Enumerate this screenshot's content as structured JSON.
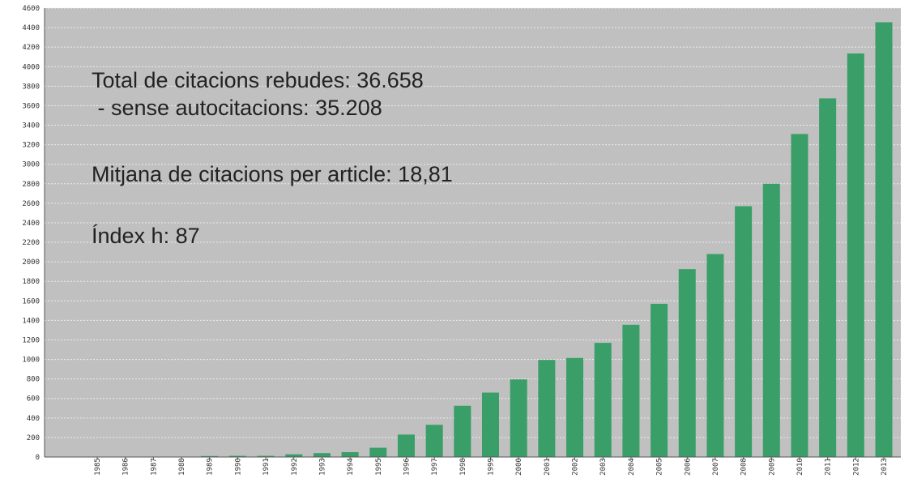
{
  "chart_data": {
    "type": "bar",
    "categories": [
      "1985",
      "1986",
      "1987",
      "1988",
      "1989",
      "1990",
      "1991",
      "1992",
      "1993",
      "1994",
      "1995",
      "1996",
      "1997",
      "1998",
      "1999",
      "2000",
      "2001",
      "2002",
      "2003",
      "2004",
      "2005",
      "2006",
      "2007",
      "2008",
      "2009",
      "2010",
      "2011",
      "2012",
      "2013"
    ],
    "values": [
      0,
      0,
      0,
      0,
      10,
      12,
      12,
      28,
      40,
      50,
      95,
      230,
      330,
      525,
      660,
      795,
      995,
      1015,
      1170,
      1355,
      1570,
      1925,
      2080,
      2570,
      2800,
      3310,
      3675,
      4135,
      4455
    ],
    "ylim": [
      0,
      4600
    ],
    "ytick_step": 200,
    "grid": true,
    "legend": "none",
    "annotations": [
      "Total de citacions rebudes: 36.658",
      " - sense autocitacions: 35.208",
      "Mitjana de citacions per article: 18,81",
      "Índex h: 87"
    ],
    "colors": {
      "bar": "#3a9e68",
      "plot_background": "#c0c0c0",
      "grid": "#ededed",
      "axis": "#555555"
    }
  }
}
